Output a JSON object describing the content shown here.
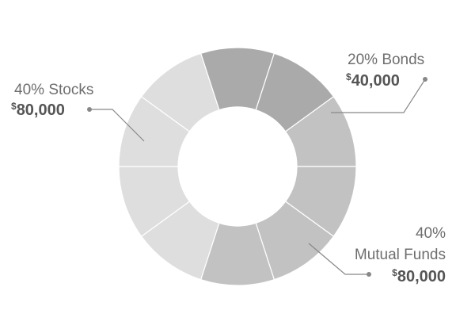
{
  "chart_data": {
    "type": "pie",
    "style": "donut",
    "slices": [
      {
        "key": "bonds",
        "percent_label": "20%",
        "name": "Bonds",
        "currency": "$",
        "amount": "40,000",
        "value": 20,
        "color": "#aaaaaa",
        "segments": 2
      },
      {
        "key": "funds",
        "percent_label": "40%",
        "name": "Mutual Funds",
        "currency": "$",
        "amount": "80,000",
        "value": 40,
        "color": "#c2c2c2",
        "segments": 4
      },
      {
        "key": "stocks",
        "percent_label": "40%",
        "name": "Stocks",
        "currency": "$",
        "amount": "80,000",
        "value": 40,
        "color": "#dedede",
        "segments": 4
      }
    ],
    "label_color": "#888888",
    "legend": "callouts"
  }
}
